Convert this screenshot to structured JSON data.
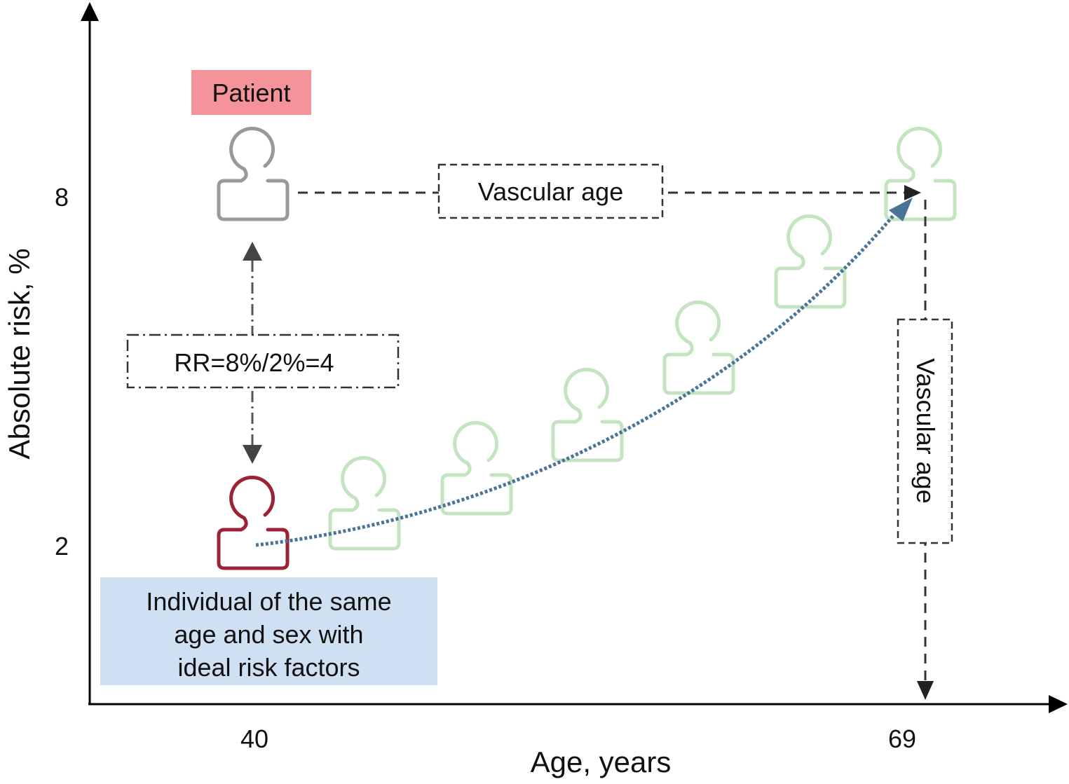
{
  "axes": {
    "y_label": "Absolute risk, %",
    "x_label": "Age, years",
    "y_ticks": [
      "8",
      "2"
    ],
    "x_ticks": [
      "40",
      "69"
    ]
  },
  "labels": {
    "patient": "Patient",
    "individual": [
      "Individual of the same",
      "age and sex with",
      "ideal risk factors"
    ],
    "vascular_age_h": "Vascular age",
    "vascular_age_v": "Vascular age",
    "rr": "RR=8%/2%=4"
  },
  "colors": {
    "patient_box": "#f4939a",
    "individual_box": "#d0e0f3",
    "patient_icon": "#999999",
    "individual_icon": "#9b2335",
    "trajectory_icon": "#c4e3c1",
    "curve": "#4a7398",
    "lines": "#333333"
  }
}
